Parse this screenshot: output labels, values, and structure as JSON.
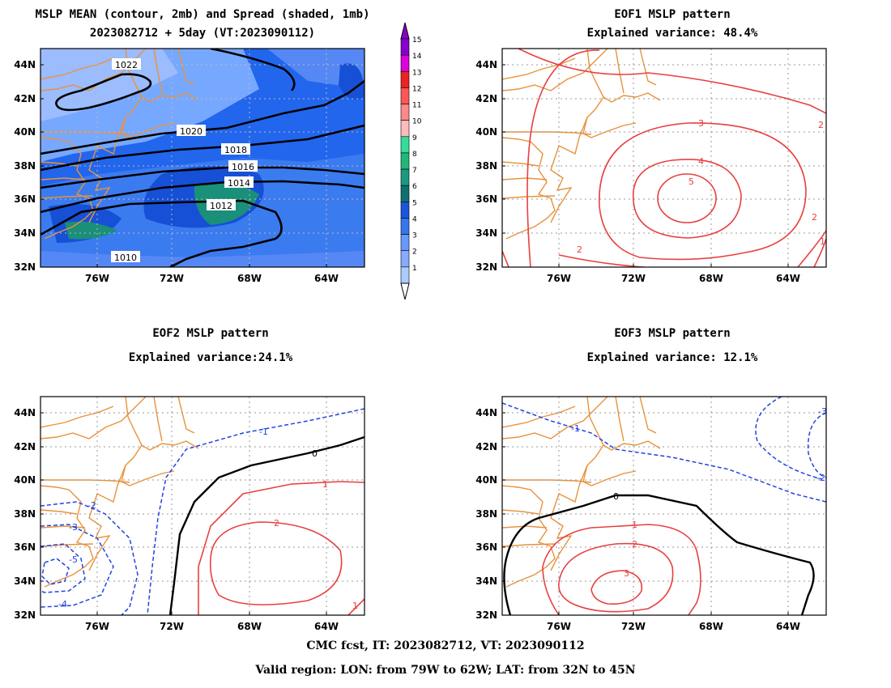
{
  "panels": [
    {
      "id": "mean",
      "title1": "MSLP MEAN (contour, 2mb) and Spread (shaded, 1mb)",
      "title2": "2023082712 + 5day (VT:2023090112)",
      "contour_labels": [
        "1022",
        "1020",
        "1018",
        "1016",
        "1014",
        "1012",
        "1010"
      ]
    },
    {
      "id": "eof1",
      "title1": "EOF1 MSLP pattern",
      "title2": "Explained variance: 48.4%",
      "contour_labels": [
        "3",
        "4",
        "5",
        "2",
        "2",
        "2",
        "1"
      ]
    },
    {
      "id": "eof2",
      "title1": "EOF2 MSLP pattern",
      "title2": "Explained variance:24.1%",
      "contour_labels": [
        "-1",
        "-2",
        "-3",
        "-5",
        "-4",
        "0",
        "1",
        "2",
        "1"
      ]
    },
    {
      "id": "eof3",
      "title1": "EOF3 MSLP pattern",
      "title2": "Explained variance: 12.1%",
      "contour_labels": [
        "-1",
        "-2",
        "-3",
        "0",
        "1",
        "2",
        "3"
      ]
    }
  ],
  "axes": {
    "lat_ticks": [
      "44N",
      "42N",
      "40N",
      "38N",
      "36N",
      "34N",
      "32N"
    ],
    "lon_ticks": [
      "76W",
      "72W",
      "68W",
      "64W"
    ]
  },
  "colorbar": {
    "labels": [
      "1",
      "2",
      "3",
      "4",
      "5",
      "6",
      "7",
      "8",
      "9",
      "10",
      "11",
      "12",
      "13",
      "14",
      "15"
    ],
    "colors": [
      "#aaccff",
      "#88aaff",
      "#6699ff",
      "#3377ee",
      "#1a55dd",
      "#0f7070",
      "#1a9a80",
      "#20b878",
      "#30dd99",
      "#ffbbbb",
      "#ff8888",
      "#ff5555",
      "#ee2222",
      "#dd00dd",
      "#8800cc"
    ]
  },
  "footer": {
    "line1": "CMC fcst, IT: 2023082712, VT: 2023090112",
    "line2": "Valid region: LON: from 79W to 62W; LAT: from 32N to 45N"
  },
  "colors": {
    "coast": "#e8923c",
    "positive": "#e84040",
    "negative": "#2244dd",
    "zero": "#000000",
    "grid": "#999999"
  }
}
